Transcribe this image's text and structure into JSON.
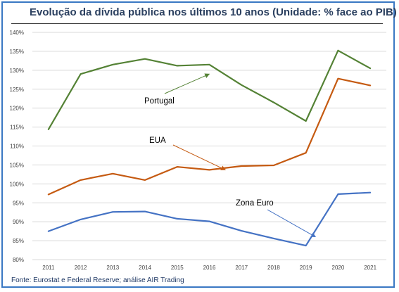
{
  "chart_data": {
    "type": "line",
    "title": "Evolução da dívida pública nos últimos 10 anos (Unidade: % face ao PIB)",
    "source": "Fonte: Eurostat e Federal Reserve; análise AIR Trading",
    "x": [
      "2011",
      "2012",
      "2013",
      "2014",
      "2015",
      "2016",
      "2017",
      "2018",
      "2019",
      "2020",
      "2021"
    ],
    "y_ticks": [
      "80%",
      "85%",
      "90%",
      "95%",
      "100%",
      "105%",
      "110%",
      "115%",
      "120%",
      "125%",
      "130%",
      "135%",
      "140%"
    ],
    "ylim": [
      80,
      140
    ],
    "grid": true,
    "series": [
      {
        "name": "Portugal",
        "color": "#548235",
        "values": [
          114.4,
          129.0,
          131.5,
          133.0,
          131.2,
          131.5,
          126.1,
          121.5,
          116.6,
          135.2,
          130.5
        ],
        "label_at": [
          2016,
          129.0
        ]
      },
      {
        "name": "EUA",
        "color": "#c55a11",
        "values": [
          97.2,
          101.0,
          102.7,
          101.0,
          104.5,
          103.7,
          104.7,
          104.9,
          108.2,
          127.8,
          126.0
        ],
        "label_at": [
          2016.5,
          103.7
        ]
      },
      {
        "name": "Zona Euro",
        "color": "#4472c4",
        "values": [
          87.5,
          90.6,
          92.6,
          92.7,
          90.8,
          90.1,
          87.6,
          85.6,
          83.7,
          97.3,
          97.7
        ],
        "label_at": [
          2019.3,
          86.0
        ]
      }
    ]
  }
}
